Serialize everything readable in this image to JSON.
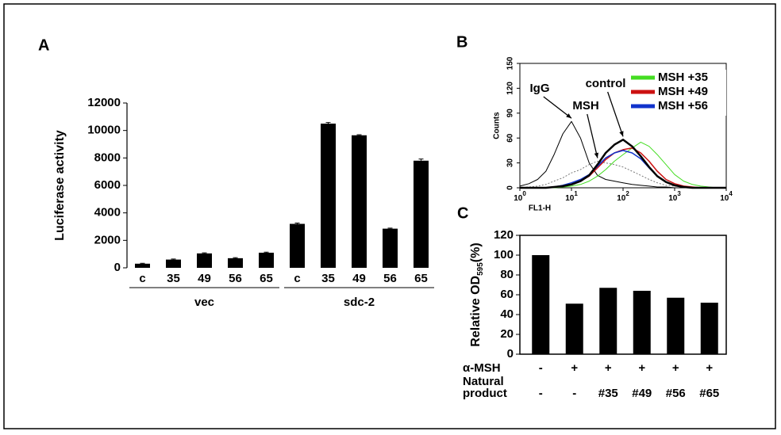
{
  "chart_data": [
    {
      "type": "bar",
      "panel": "A",
      "ylabel": "Luciferase activity",
      "categories": [
        "c",
        "35",
        "49",
        "56",
        "65",
        "c",
        "35",
        "49",
        "56",
        "65"
      ],
      "groups": [
        "vec",
        "sdc-2"
      ],
      "values": [
        300,
        600,
        1050,
        700,
        1100,
        3200,
        10500,
        9650,
        2850,
        7800
      ],
      "errors": [
        30,
        40,
        40,
        40,
        40,
        60,
        80,
        40,
        40,
        120
      ],
      "color": "#000000",
      "ylim": [
        0,
        12000
      ],
      "yticks": [
        0,
        2000,
        4000,
        6000,
        8000,
        10000,
        12000
      ]
    },
    {
      "type": "line",
      "panel": "B",
      "ylabel": "Counts",
      "xlabel": "FL1-H",
      "xscale": "log",
      "x": [
        1,
        1.5,
        2.2,
        3.2,
        4.6,
        6.8,
        10,
        15,
        22,
        32,
        46,
        68,
        100,
        150,
        220,
        320,
        460,
        680,
        1000,
        1500,
        2200,
        3200,
        4600,
        6800,
        10000
      ],
      "series": [
        {
          "label": "IgG",
          "color": "#000000",
          "line_width": 1,
          "values": [
            2,
            5,
            10,
            20,
            40,
            65,
            80,
            60,
            30,
            15,
            10,
            8,
            6,
            4,
            3,
            2,
            1,
            1,
            0,
            0,
            0,
            0,
            0,
            0,
            0
          ]
        },
        {
          "label": "MSH",
          "color": "#777777",
          "line_width": 1,
          "style": "dotted",
          "values": [
            0,
            1,
            2,
            4,
            8,
            12,
            18,
            22,
            28,
            32,
            30,
            28,
            25,
            20,
            15,
            10,
            6,
            3,
            2,
            1,
            0,
            0,
            0,
            0,
            0
          ]
        },
        {
          "name": "MSH +35",
          "color": "#44dd22",
          "line_width": 1,
          "values": [
            0,
            0,
            0,
            0,
            0,
            1,
            2,
            4,
            8,
            14,
            22,
            32,
            40,
            48,
            55,
            50,
            40,
            28,
            16,
            8,
            4,
            2,
            1,
            0,
            0
          ]
        },
        {
          "name": "MSH +49",
          "color": "#cc1111",
          "line_width": 1.5,
          "values": [
            0,
            0,
            0,
            0,
            1,
            2,
            4,
            8,
            14,
            24,
            34,
            42,
            46,
            48,
            42,
            32,
            20,
            10,
            5,
            2,
            1,
            0,
            0,
            0,
            0
          ]
        },
        {
          "name": "MSH +56",
          "color": "#1133cc",
          "line_width": 1.5,
          "values": [
            0,
            0,
            0,
            0,
            1,
            3,
            6,
            10,
            16,
            26,
            36,
            42,
            45,
            42,
            35,
            24,
            14,
            7,
            3,
            1,
            0,
            0,
            0,
            0,
            0
          ]
        },
        {
          "label": "control",
          "color": "#000000",
          "line_width": 2.5,
          "values": [
            0,
            0,
            0,
            0,
            1,
            2,
            4,
            8,
            15,
            28,
            42,
            52,
            58,
            50,
            38,
            25,
            14,
            7,
            3,
            1,
            0,
            0,
            0,
            0,
            0
          ]
        }
      ],
      "xlim": [
        1,
        10000
      ],
      "xticks": [
        {
          "value": 1,
          "label": "10",
          "exponent": "0"
        },
        {
          "value": 10,
          "label": "10",
          "exponent": "1"
        },
        {
          "value": 100,
          "label": "10",
          "exponent": "2"
        },
        {
          "value": 1000,
          "label": "10",
          "exponent": "3"
        },
        {
          "value": 10000,
          "label": "10",
          "exponent": "4"
        }
      ],
      "ylim": [
        0,
        150
      ],
      "yticks": [
        0,
        30,
        60,
        90,
        120,
        150
      ],
      "legend": "upper right"
    },
    {
      "type": "bar",
      "panel": "C",
      "ylabel": {
        "text": "Relative OD",
        "subscript": "595",
        "suffix": "(%)"
      },
      "values": [
        100,
        51,
        67,
        64,
        57,
        52
      ],
      "color": "#000000",
      "ylim": [
        0,
        120
      ],
      "yticks": [
        0,
        20,
        40,
        60,
        80,
        100,
        120
      ],
      "treatments": [
        {
          "label": [
            "α-MSH"
          ],
          "values": [
            "-",
            "+",
            "+",
            "+",
            "+",
            "+"
          ]
        },
        {
          "label": [
            "Natural",
            "product"
          ],
          "values": [
            "-",
            "-",
            "#35",
            "#49",
            "#56",
            "#65"
          ]
        }
      ]
    }
  ]
}
